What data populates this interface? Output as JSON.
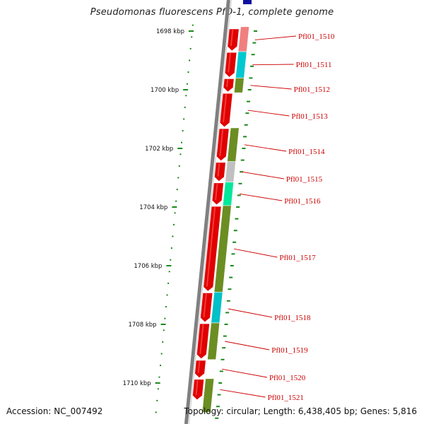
{
  "title": "Pseudomonas fluorescens PfO-1, complete genome",
  "accession": "Accession: NC_007492",
  "topology": "Topology: circular; Length: 6,438,405 bp; Genes: 5,816",
  "scale_labels": [
    {
      "kbp": 1698,
      "label": "1698 kbp"
    },
    {
      "kbp": 1700,
      "label": "1700 kbp"
    },
    {
      "kbp": 1702,
      "label": "1702 kbp"
    },
    {
      "kbp": 1704,
      "label": "1704 kbp"
    },
    {
      "kbp": 1706,
      "label": "1706 kbp"
    },
    {
      "kbp": 1708,
      "label": "1708 kbp"
    },
    {
      "kbp": 1710,
      "label": "1710 kbp"
    }
  ],
  "genes": [
    {
      "name": "Pfl01_1510",
      "start": 1697.9,
      "end": 1698.7
    },
    {
      "name": "Pfl01_1511",
      "start": 1698.7,
      "end": 1699.6
    },
    {
      "name": "Pfl01_1512",
      "start": 1699.6,
      "end": 1700.1
    },
    {
      "name": "Pfl01_1513",
      "start": 1700.1,
      "end": 1701.3
    },
    {
      "name": "Pfl01_1514",
      "start": 1701.3,
      "end": 1702.45
    },
    {
      "name": "Pfl01_1515",
      "start": 1702.45,
      "end": 1703.15
    },
    {
      "name": "Pfl01_1516",
      "start": 1703.15,
      "end": 1703.95
    },
    {
      "name": "Pfl01_1517",
      "start": 1703.95,
      "end": 1706.9
    },
    {
      "name": "Pfl01_1518",
      "start": 1706.9,
      "end": 1707.95
    },
    {
      "name": "Pfl01_1519",
      "start": 1707.95,
      "end": 1709.2
    },
    {
      "name": "Pfl01_1520",
      "start": 1709.2,
      "end": 1709.85
    },
    {
      "name": "Pfl01_1521",
      "start": 1709.85,
      "end": 1710.6
    }
  ],
  "cog_blocks": [
    {
      "start": 1697.85,
      "end": 1698.7,
      "color": "#f08080"
    },
    {
      "start": 1698.7,
      "end": 1699.6,
      "color": "#00c8d0"
    },
    {
      "start": 1699.6,
      "end": 1700.1,
      "color": "#6b8e23"
    },
    {
      "start": 1701.3,
      "end": 1702.45,
      "color": "#6b8e23"
    },
    {
      "start": 1702.45,
      "end": 1703.15,
      "color": "#c0c0c0"
    },
    {
      "start": 1703.15,
      "end": 1703.95,
      "color": "#00e89a"
    },
    {
      "start": 1703.95,
      "end": 1706.9,
      "color": "#6b8e23"
    },
    {
      "start": 1706.9,
      "end": 1707.95,
      "color": "#00c0c8"
    },
    {
      "start": 1707.95,
      "end": 1709.2,
      "color": "#6b8e23"
    },
    {
      "start": 1709.85,
      "end": 1711.0,
      "color": "#6b8e23"
    }
  ],
  "colors": {
    "cds": "#e00000",
    "backbone": "#808080",
    "gene_label": "#cc0000",
    "tick": "#1a8a1a",
    "cog_default": "#6b8e23",
    "top_blue": "#1010a0"
  }
}
